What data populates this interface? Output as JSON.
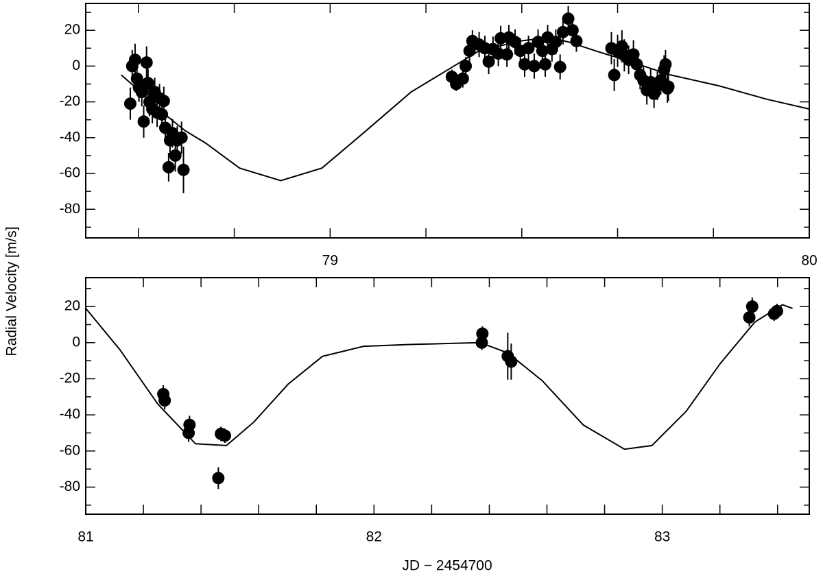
{
  "chart_data": [
    {
      "type": "scatter",
      "color": "#000000",
      "ylabel": "Radial Velocity [m/s]",
      "xlim": [
        78.49,
        80
      ],
      "ylim": [
        -96,
        35
      ],
      "xticks": [
        79,
        80
      ],
      "yticks": [
        -80,
        -60,
        -40,
        -20,
        0,
        20
      ],
      "xminor": [
        78.6,
        78.8,
        79.2,
        79.4,
        79.6,
        79.8
      ],
      "yminor": [
        -90,
        -70,
        -50,
        -30,
        -10,
        10,
        30
      ],
      "x": [
        78.583,
        78.587,
        78.593,
        78.597,
        78.601,
        78.607,
        78.611,
        78.617,
        78.62,
        78.623,
        78.629,
        78.634,
        78.639,
        78.644,
        78.649,
        78.653,
        78.656,
        78.663,
        78.666,
        78.671,
        78.677,
        78.681,
        78.69,
        78.694,
        79.254,
        79.263,
        79.277,
        79.283,
        79.291,
        79.297,
        79.311,
        79.323,
        79.331,
        79.34,
        79.351,
        79.356,
        79.369,
        79.373,
        79.386,
        79.397,
        79.406,
        79.414,
        79.426,
        79.434,
        79.443,
        79.449,
        79.454,
        79.463,
        79.471,
        79.48,
        79.486,
        79.497,
        79.506,
        79.514,
        79.587,
        79.593,
        79.6,
        79.609,
        79.614,
        79.623,
        79.633,
        79.64,
        79.647,
        79.654,
        79.661,
        79.669,
        79.676,
        79.683,
        79.69,
        79.697,
        79.704,
        79.7,
        79.706
      ],
      "values": [
        -21,
        0,
        3.5,
        -7,
        -12,
        -14.5,
        -31,
        2,
        -9.5,
        -20,
        -24,
        -14.5,
        -26,
        -18,
        -27,
        -19.5,
        -34.5,
        -56.5,
        -41.5,
        -37.5,
        -50,
        -41.5,
        -40,
        -58,
        -6,
        -10,
        -7,
        0,
        8.5,
        14,
        12,
        10,
        2.5,
        9.5,
        7,
        15.5,
        6.5,
        16,
        13.5,
        8.5,
        1,
        10,
        0,
        13.5,
        8.5,
        1,
        16,
        9.5,
        13.5,
        -0.5,
        19,
        26.5,
        20,
        14,
        10,
        -5,
        8.5,
        11,
        6,
        3.5,
        6.5,
        1,
        -5,
        -8,
        -13.5,
        -9,
        -15.5,
        -11,
        -8,
        -2,
        -12.5,
        1,
        -11.5
      ],
      "errors": [
        9,
        9,
        9,
        8,
        8,
        8,
        9,
        9,
        8,
        8,
        8,
        8,
        8,
        8,
        8,
        8,
        8,
        8,
        8,
        8,
        9,
        8,
        9,
        13,
        4,
        4,
        5,
        5,
        6,
        6,
        7,
        7,
        7,
        7,
        7,
        7,
        7,
        7,
        7,
        7,
        7,
        7,
        7,
        7,
        7,
        7,
        7,
        7,
        7,
        7,
        7,
        7,
        7,
        6,
        9,
        9,
        9,
        9,
        9,
        8,
        8,
        8,
        8,
        8,
        8,
        8,
        8,
        8,
        8,
        8,
        8,
        8,
        8
      ],
      "model": {
        "x": [
          78.564,
          78.597,
          78.626,
          78.66,
          78.697,
          78.74,
          78.811,
          78.897,
          78.983,
          79.069,
          79.169,
          79.24,
          79.311,
          79.397,
          79.454,
          79.497,
          79.554,
          79.626,
          79.711,
          79.811,
          79.911,
          80.0
        ],
        "values": [
          -5,
          -12.6,
          -20,
          -28,
          -36,
          -43,
          -57,
          -64,
          -57,
          -37.5,
          -14.5,
          -3,
          8.5,
          14,
          16,
          13.5,
          8.5,
          2.5,
          -5,
          -11,
          -18.5,
          -24
        ]
      }
    },
    {
      "type": "scatter",
      "color": "#000000",
      "xlabel": "JD − 2454700",
      "xlim": [
        81,
        83.51
      ],
      "ylim": [
        -95,
        36
      ],
      "xticks": [
        81,
        82,
        83
      ],
      "yticks": [
        -80,
        -60,
        -40,
        -20,
        0,
        20
      ],
      "xminor": [
        81.2,
        81.4,
        81.6,
        81.8,
        82.2,
        82.4,
        82.6,
        82.8,
        83.2,
        83.4
      ],
      "yminor": [
        -90,
        -70,
        -50,
        -30,
        -10,
        10,
        30
      ],
      "x": [
        81.269,
        81.274,
        81.357,
        81.36,
        81.46,
        81.469,
        81.483,
        82.376,
        82.374,
        82.464,
        82.476,
        83.302,
        83.312,
        83.388,
        83.398
      ],
      "values": [
        -28.5,
        -32,
        -50,
        -45.5,
        -75,
        -50.5,
        -51.5,
        5,
        0,
        -7.5,
        -10.5,
        14,
        20,
        16,
        17.5
      ],
      "errors": [
        5,
        5,
        5,
        5,
        6,
        4,
        4,
        4,
        4,
        13,
        10,
        5,
        5,
        4,
        4
      ],
      "model": {
        "x": [
          81,
          81.119,
          81.25,
          81.381,
          81.488,
          81.583,
          81.702,
          81.821,
          81.964,
          82.131,
          82.369,
          82.464,
          82.583,
          82.726,
          82.869,
          82.964,
          83.083,
          83.202,
          83.321,
          83.417,
          83.452
        ],
        "values": [
          19,
          -4,
          -34,
          -56,
          -57,
          -44,
          -23,
          -7.6,
          -2,
          -1,
          0,
          -5.7,
          -21,
          -45.6,
          -59,
          -57,
          -38,
          -11.4,
          11.4,
          21,
          19
        ]
      }
    }
  ]
}
